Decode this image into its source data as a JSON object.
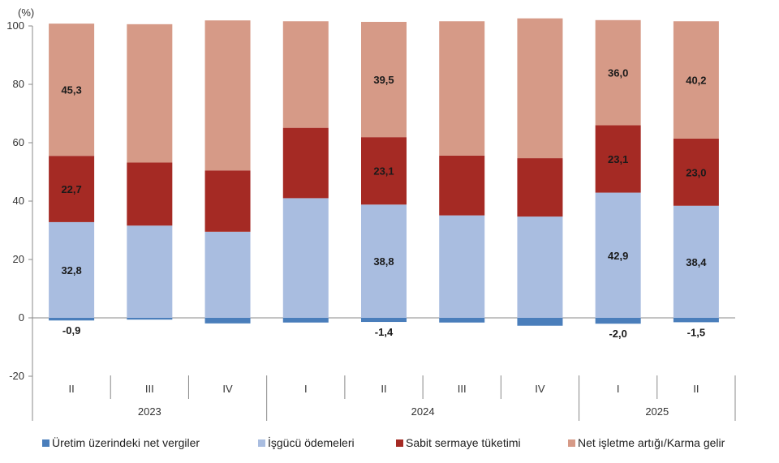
{
  "chart_data": {
    "type": "bar",
    "stacked": true,
    "unit_label": "(%)",
    "ylim": [
      -20,
      100
    ],
    "yticks": [
      -20,
      0,
      20,
      40,
      60,
      80,
      100
    ],
    "grid": false,
    "legend_position": "bottom",
    "categories": [
      "II",
      "III",
      "IV",
      "I",
      "II",
      "III",
      "IV",
      "I",
      "II"
    ],
    "year_groups": [
      {
        "label": "2023",
        "start": 0,
        "end": 2
      },
      {
        "label": "2024",
        "start": 3,
        "end": 6
      },
      {
        "label": "2025",
        "start": 7,
        "end": 8
      }
    ],
    "series": [
      {
        "name": "Üretim üzerindeki net vergiler",
        "color": "#4a7ebb",
        "values": [
          -0.9,
          -0.6,
          -1.9,
          -1.6,
          -1.4,
          -1.6,
          -2.7,
          -2.0,
          -1.5
        ],
        "labels": [
          "-0,9",
          "",
          "",
          "",
          "-1,4",
          "",
          "",
          "-2,0",
          "-1,5"
        ]
      },
      {
        "name": "İşgücü ödemeleri",
        "color": "#a9bde0",
        "values": [
          32.8,
          31.6,
          29.5,
          41.0,
          38.8,
          35.1,
          34.7,
          42.9,
          38.4
        ],
        "labels": [
          "32,8",
          "",
          "",
          "",
          "38,8",
          "",
          "",
          "42,9",
          "38,4"
        ]
      },
      {
        "name": "Sabit sermaye tüketimi",
        "color": "#a52a24",
        "values": [
          22.7,
          21.6,
          21.0,
          24.1,
          23.1,
          20.5,
          20.0,
          23.1,
          23.0
        ],
        "labels": [
          "22,7",
          "",
          "",
          "",
          "23,1",
          "",
          "",
          "23,1",
          "23,0"
        ]
      },
      {
        "name": "Net işletme artığı/Karma gelir",
        "color": "#d69a87",
        "values": [
          45.3,
          47.4,
          51.4,
          36.5,
          39.5,
          46.0,
          47.9,
          36.0,
          40.2
        ],
        "labels": [
          "45,3",
          "",
          "",
          "",
          "39,5",
          "",
          "",
          "36,0",
          "40,2"
        ]
      }
    ]
  }
}
